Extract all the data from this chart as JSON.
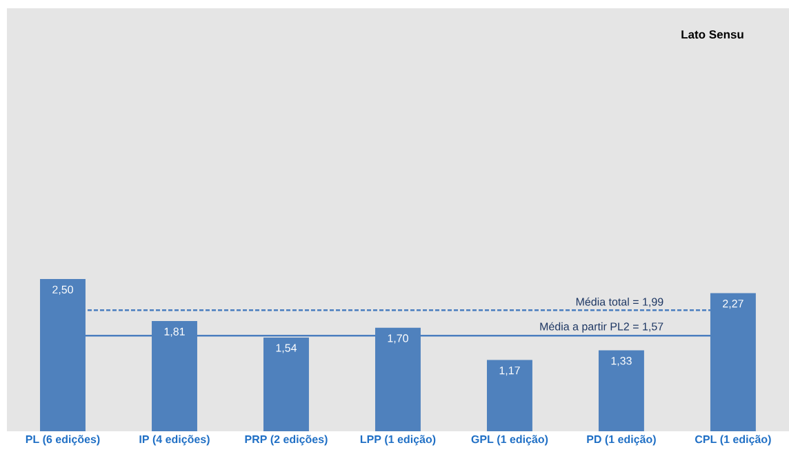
{
  "chart_data": {
    "type": "bar",
    "title": "Lato Sensu",
    "categories": [
      "PL (6 edições)",
      "IP (4 edições)",
      "PRP (2 edições)",
      "LPP (1 edição)",
      "GPL (1 edição)",
      "PD (1 edição)",
      "CPL (1 edição)"
    ],
    "values": [
      2.5,
      1.81,
      1.54,
      1.7,
      1.17,
      1.33,
      2.27
    ],
    "value_labels": [
      "2,50",
      "1,81",
      "1,54",
      "1,70",
      "1,17",
      "1,33",
      "2,27"
    ],
    "color": "#4f81bd",
    "ylim": [
      0,
      6.95
    ],
    "ref_lines": [
      {
        "axis": "y",
        "value": 1.99,
        "label": "Média total = 1,99",
        "color": "#4a7ebf",
        "line_style": "dashed"
      },
      {
        "axis": "y",
        "value": 1.57,
        "label": "Média a partir PL2 = 1,57",
        "color": "#4a7ebf",
        "line_style": "solid"
      }
    ]
  }
}
